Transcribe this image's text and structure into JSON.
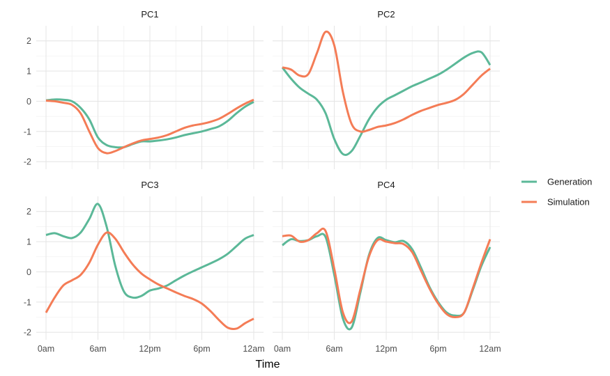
{
  "chart_data": {
    "type": "line",
    "xlabel": "Time",
    "x_range": [
      0,
      24
    ],
    "x_ticks": [
      {
        "value": 0,
        "label": "0am"
      },
      {
        "value": 6,
        "label": "6am"
      },
      {
        "value": 12,
        "label": "12pm"
      },
      {
        "value": 18,
        "label": "6pm"
      },
      {
        "value": 24,
        "label": "12am"
      }
    ],
    "y_range": [
      -2.25,
      2.5
    ],
    "y_ticks": [
      -2,
      -1,
      0,
      1,
      2
    ],
    "grid": true,
    "legend_position": "right",
    "legend": [
      {
        "name": "Generation",
        "color": "#5BB898"
      },
      {
        "name": "Simulation",
        "color": "#F47C56"
      }
    ],
    "x": [
      0,
      1,
      2,
      3,
      4,
      5,
      6,
      7,
      8,
      9,
      10,
      11,
      12,
      13,
      14,
      15,
      16,
      17,
      18,
      19,
      20,
      21,
      22,
      23,
      24
    ],
    "panels": [
      {
        "title": "PC1",
        "series": [
          {
            "name": "Generation",
            "values": [
              0.03,
              0.06,
              0.05,
              0.0,
              -0.22,
              -0.6,
              -1.2,
              -1.45,
              -1.52,
              -1.52,
              -1.42,
              -1.33,
              -1.33,
              -1.3,
              -1.26,
              -1.2,
              -1.12,
              -1.06,
              -1.0,
              -0.92,
              -0.83,
              -0.65,
              -0.4,
              -0.18,
              -0.02
            ]
          },
          {
            "name": "Simulation",
            "values": [
              0.02,
              0.0,
              -0.05,
              -0.12,
              -0.4,
              -1.0,
              -1.55,
              -1.72,
              -1.65,
              -1.52,
              -1.4,
              -1.3,
              -1.25,
              -1.2,
              -1.12,
              -1.0,
              -0.88,
              -0.8,
              -0.75,
              -0.68,
              -0.58,
              -0.42,
              -0.24,
              -0.08,
              0.05
            ]
          }
        ]
      },
      {
        "title": "PC2",
        "series": [
          {
            "name": "Generation",
            "values": [
              1.12,
              0.75,
              0.45,
              0.25,
              0.05,
              -0.4,
              -1.25,
              -1.75,
              -1.65,
              -1.15,
              -0.6,
              -0.2,
              0.05,
              0.2,
              0.35,
              0.5,
              0.62,
              0.75,
              0.88,
              1.05,
              1.25,
              1.45,
              1.6,
              1.62,
              1.2
            ]
          },
          {
            "name": "Simulation",
            "values": [
              1.12,
              1.05,
              0.85,
              0.9,
              1.6,
              2.3,
              1.85,
              0.3,
              -0.75,
              -1.0,
              -0.95,
              -0.85,
              -0.8,
              -0.72,
              -0.6,
              -0.45,
              -0.32,
              -0.22,
              -0.12,
              -0.05,
              0.05,
              0.25,
              0.55,
              0.85,
              1.08
            ]
          }
        ]
      },
      {
        "title": "PC3",
        "series": [
          {
            "name": "Generation",
            "values": [
              1.22,
              1.28,
              1.18,
              1.12,
              1.3,
              1.75,
              2.25,
              1.5,
              0.2,
              -0.65,
              -0.85,
              -0.8,
              -0.62,
              -0.55,
              -0.45,
              -0.28,
              -0.12,
              0.02,
              0.15,
              0.28,
              0.42,
              0.6,
              0.85,
              1.1,
              1.22
            ]
          },
          {
            "name": "Simulation",
            "values": [
              -1.35,
              -0.85,
              -0.45,
              -0.28,
              -0.1,
              0.3,
              0.9,
              1.3,
              1.1,
              0.65,
              0.25,
              -0.05,
              -0.25,
              -0.42,
              -0.55,
              -0.68,
              -0.8,
              -0.9,
              -1.05,
              -1.3,
              -1.6,
              -1.85,
              -1.88,
              -1.7,
              -1.55
            ]
          }
        ]
      },
      {
        "title": "PC4",
        "series": [
          {
            "name": "Generation",
            "values": [
              0.88,
              1.08,
              1.02,
              1.05,
              1.18,
              1.15,
              -0.1,
              -1.55,
              -1.85,
              -0.7,
              0.55,
              1.12,
              1.05,
              0.98,
              1.02,
              0.75,
              0.15,
              -0.5,
              -1.0,
              -1.35,
              -1.45,
              -1.35,
              -0.6,
              0.2,
              0.82
            ]
          },
          {
            "name": "Simulation",
            "values": [
              1.18,
              1.2,
              1.0,
              1.05,
              1.28,
              1.35,
              0.1,
              -1.35,
              -1.65,
              -0.6,
              0.5,
              1.05,
              1.0,
              0.95,
              0.92,
              0.65,
              0.05,
              -0.55,
              -1.05,
              -1.4,
              -1.5,
              -1.35,
              -0.55,
              0.3,
              1.08
            ]
          }
        ]
      }
    ]
  }
}
